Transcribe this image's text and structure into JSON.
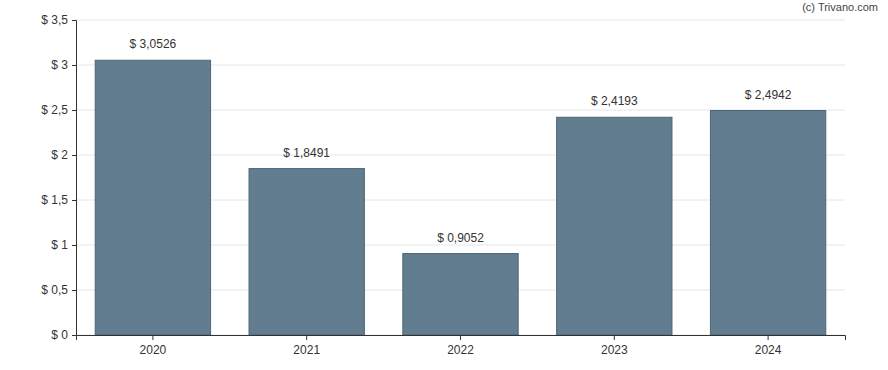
{
  "chart_data": {
    "type": "bar",
    "annotations": [
      "(c) Trivano.com"
    ],
    "categories": [
      "2020",
      "2021",
      "2022",
      "2023",
      "2024"
    ],
    "values": [
      3.0526,
      1.8491,
      0.9052,
      2.4193,
      2.4942
    ],
    "value_labels": [
      "$ 3,0526",
      "$ 1,8491",
      "$ 0,9052",
      "$ 2,4193",
      "$ 2,4942"
    ],
    "color": "#627d8f",
    "ylim": [
      0,
      3.5
    ],
    "yticks": [
      {
        "value": 0,
        "label": "$ 0"
      },
      {
        "value": 0.5,
        "label": "$ 0,5"
      },
      {
        "value": 1,
        "label": "$ 1"
      },
      {
        "value": 1.5,
        "label": "$ 1,5"
      },
      {
        "value": 2,
        "label": "$ 2"
      },
      {
        "value": 2.5,
        "label": "$ 2,5"
      },
      {
        "value": 3,
        "label": "$ 3"
      },
      {
        "value": 3.5,
        "label": "$ 3,5"
      }
    ],
    "grid": true,
    "data_labels": true
  }
}
